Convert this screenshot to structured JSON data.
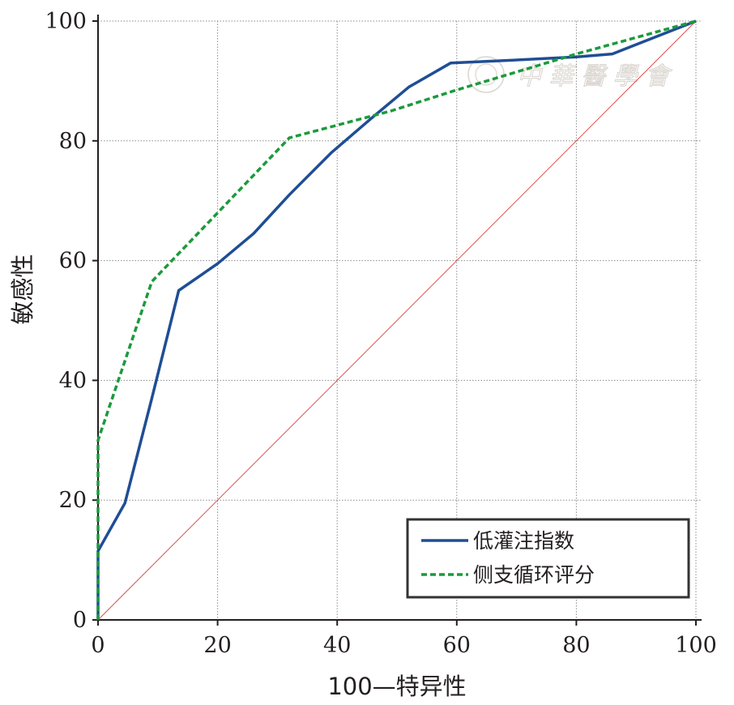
{
  "chart_data": {
    "type": "line",
    "xlabel": "100—特异性",
    "ylabel": "敏感性",
    "xlim": [
      0,
      100
    ],
    "ylim": [
      0,
      100
    ],
    "xticks": [
      "0",
      "20",
      "40",
      "60",
      "80",
      "100"
    ],
    "yticks": [
      "0",
      "20",
      "40",
      "60",
      "80",
      "100"
    ],
    "grid": true,
    "legend_position": "bottom-right",
    "series": [
      {
        "name": "低灌注指数",
        "color": "#1f4e94",
        "style": "solid",
        "x": [
          0,
          0,
          4.5,
          9,
          13.5,
          20,
          26,
          32,
          39,
          46,
          52,
          59,
          70,
          80,
          86,
          100
        ],
        "y": [
          0,
          11.5,
          19.5,
          37,
          55,
          59.5,
          64.5,
          71,
          78,
          84,
          89,
          93,
          93.5,
          94,
          94.5,
          100
        ]
      },
      {
        "name": "侧支循环评分",
        "color": "#1b9a3c",
        "style": "dashed",
        "x": [
          0,
          0,
          9,
          32,
          49,
          60,
          70,
          80,
          100
        ],
        "y": [
          0,
          30,
          56.5,
          80.5,
          85,
          88.5,
          91.5,
          94.5,
          100
        ]
      },
      {
        "name": "",
        "color": "#d9534f",
        "style": "reference",
        "x": [
          0,
          100
        ],
        "y": [
          0,
          100
        ]
      }
    ]
  }
}
